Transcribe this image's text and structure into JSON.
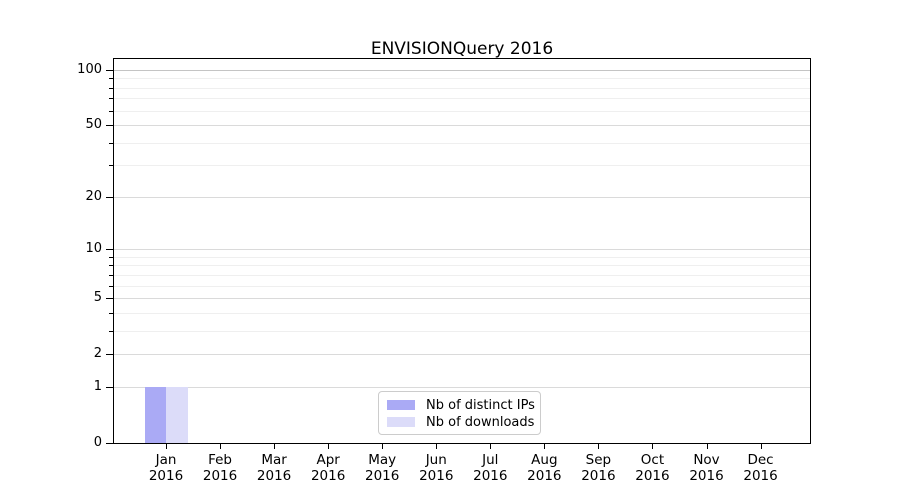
{
  "chart_data": {
    "type": "bar",
    "title": "ENVISIONQuery 2016",
    "x": {
      "months": [
        "Jan",
        "Feb",
        "Mar",
        "Apr",
        "May",
        "Jun",
        "Jul",
        "Aug",
        "Sep",
        "Oct",
        "Nov",
        "Dec"
      ],
      "year": "2016"
    },
    "series": [
      {
        "name": "Nb of distinct IPs",
        "color": "#aaaaf5",
        "values": [
          1,
          0,
          0,
          0,
          0,
          0,
          0,
          0,
          0,
          0,
          0,
          0
        ]
      },
      {
        "name": "Nb of downloads",
        "color": "#dcdcf9",
        "values": [
          1,
          0,
          0,
          0,
          0,
          0,
          0,
          0,
          0,
          0,
          0,
          0
        ]
      }
    ],
    "y_axis": {
      "scale": "log1p",
      "major_ticks": [
        0,
        1,
        2,
        5,
        10,
        20,
        50,
        100
      ],
      "minor_ticks": [
        3,
        4,
        6,
        7,
        8,
        9,
        30,
        40,
        60,
        70,
        80,
        90
      ],
      "range": [
        0,
        116
      ]
    },
    "grid": "horizontal, major and minor, light gray",
    "legend_position": "lower center, inside axes",
    "colors": {
      "grid_major": "#dadada",
      "grid_top": "#c4c4c4",
      "grid_minor": "#efefef",
      "spine": "#000000"
    }
  }
}
